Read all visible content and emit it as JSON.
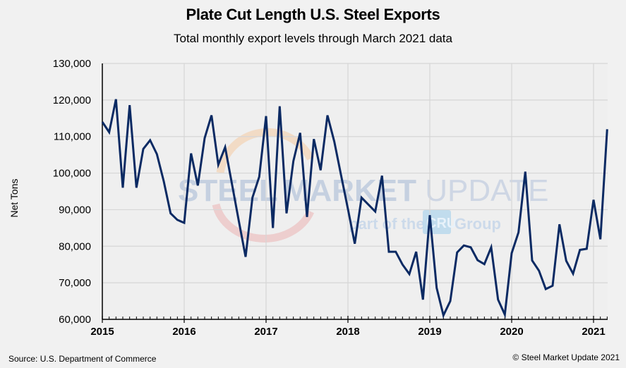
{
  "chart_data": {
    "type": "line",
    "title": "Plate Cut Length U.S. Steel Exports",
    "subtitle": "Total monthly export levels through March 2021 data",
    "xlabel": "",
    "ylabel": "Net Tons",
    "ylim": [
      60000,
      130000
    ],
    "yticks": [
      60000,
      70000,
      80000,
      90000,
      100000,
      110000,
      120000,
      130000
    ],
    "ytick_labels": [
      "60,000",
      "70,000",
      "80,000",
      "90,000",
      "100,000",
      "110,000",
      "120,000",
      "130,000"
    ],
    "xticks": [
      "2015",
      "2016",
      "2017",
      "2018",
      "2019",
      "2020",
      "2021"
    ],
    "x_start": "2015-01",
    "x_end": "2021-03",
    "grid": true,
    "legend": "none",
    "series": [
      {
        "name": "Plate Cut Length U.S. Steel Exports",
        "color": "#0b2a63",
        "x": [
          "2015-01",
          "2015-02",
          "2015-03",
          "2015-04",
          "2015-05",
          "2015-06",
          "2015-07",
          "2015-08",
          "2015-09",
          "2015-10",
          "2015-11",
          "2015-12",
          "2016-01",
          "2016-02",
          "2016-03",
          "2016-04",
          "2016-05",
          "2016-06",
          "2016-07",
          "2016-08",
          "2016-09",
          "2016-10",
          "2016-11",
          "2016-12",
          "2017-01",
          "2017-02",
          "2017-03",
          "2017-04",
          "2017-05",
          "2017-06",
          "2017-07",
          "2017-08",
          "2017-09",
          "2017-10",
          "2017-11",
          "2017-12",
          "2018-01",
          "2018-02",
          "2018-03",
          "2018-04",
          "2018-05",
          "2018-06",
          "2018-07",
          "2018-08",
          "2018-09",
          "2018-10",
          "2018-11",
          "2018-12",
          "2019-01",
          "2019-02",
          "2019-03",
          "2019-04",
          "2019-05",
          "2019-06",
          "2019-07",
          "2019-08",
          "2019-09",
          "2019-10",
          "2019-11",
          "2019-12",
          "2020-01",
          "2020-02",
          "2020-03",
          "2020-04",
          "2020-05",
          "2020-06",
          "2020-07",
          "2020-08",
          "2020-09",
          "2020-10",
          "2020-11",
          "2020-12",
          "2021-01",
          "2021-02",
          "2021-03"
        ],
        "values": [
          114000,
          111200,
          120200,
          96000,
          118600,
          96000,
          106600,
          109000,
          105200,
          97800,
          89000,
          87200,
          86400,
          105400,
          96600,
          109600,
          115800,
          102300,
          107100,
          97000,
          87000,
          77100,
          93300,
          99000,
          115600,
          85000,
          118300,
          89000,
          103300,
          111000,
          88000,
          109300,
          100800,
          115800,
          108600,
          99400,
          90200,
          80700,
          93300,
          91400,
          89500,
          99300,
          78500,
          78500,
          75000,
          72400,
          78500,
          65400,
          88500,
          68600,
          61100,
          65000,
          78300,
          80200,
          79700,
          76200,
          75100,
          79700,
          65400,
          61300,
          78100,
          83800,
          100400,
          76100,
          73300,
          68300,
          69200,
          86000,
          76000,
          72500,
          79000,
          79300,
          92700,
          81900,
          112000
        ]
      }
    ]
  },
  "watermark": {
    "brand_bold": "STEEL",
    "brand_bold2": "MARKET",
    "brand_light": " UPDATE",
    "tagline_pre": "part of the",
    "tagline_logo": "CRU",
    "tagline_post": "Group"
  },
  "footer": {
    "source": "Source: U.S. Department of Commerce",
    "copyright": "© Steel Market Update 2021"
  }
}
